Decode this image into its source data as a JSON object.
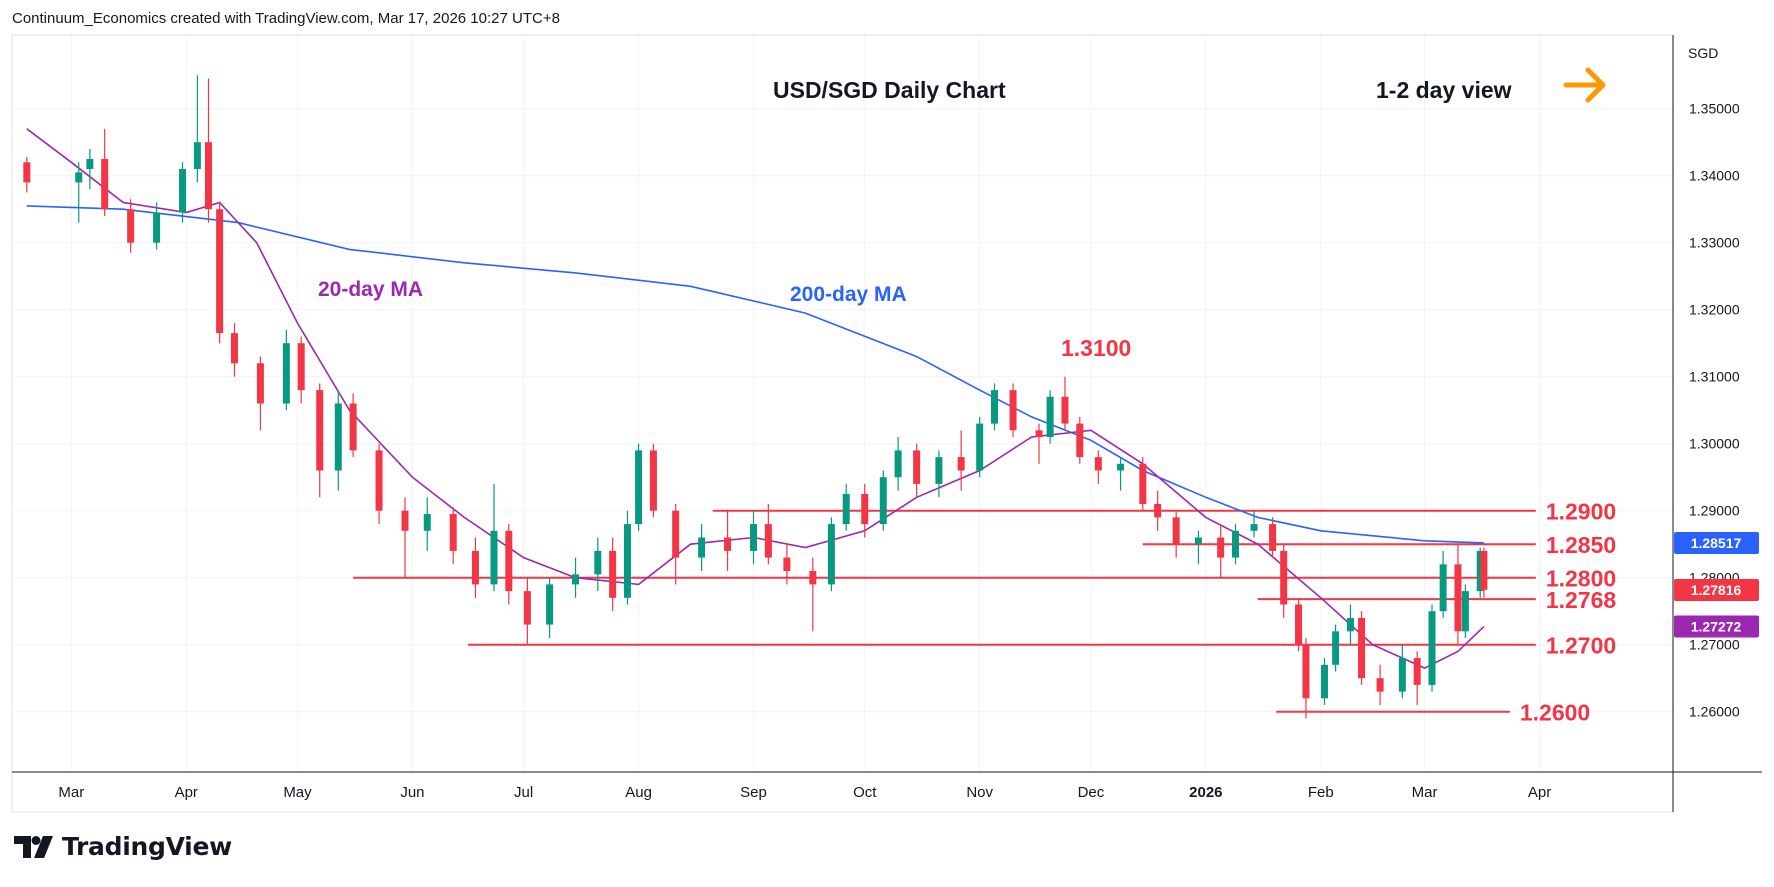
{
  "header": {
    "attribution": "Continuum_Economics created with TradingView.com, Mar 17, 2026 10:27 UTC+8"
  },
  "footer": {
    "brand": "TradingView"
  },
  "colors": {
    "up": "#089981",
    "down": "#f23645",
    "ma20": "#9c27b0",
    "ma200": "#2962ff",
    "level": "#f23645",
    "arrow": "#ff9800",
    "grid": "#f0f3fa",
    "axis": "#131722"
  },
  "chart_data": {
    "type": "candlestick",
    "title": "USD/SGD Daily Chart",
    "view_label": "1-2 day view",
    "view_icon": "right-arrow-icon",
    "currency": "SGD",
    "x_tick_labels": [
      "Mar",
      "Apr",
      "May",
      "Jun",
      "Jul",
      "Aug",
      "Sep",
      "Oct",
      "Nov",
      "Dec",
      "2026",
      "Feb",
      "Mar",
      "Apr"
    ],
    "y_tick_labels": [
      "1.35000",
      "1.34000",
      "1.33000",
      "1.32000",
      "1.31000",
      "1.30000",
      "1.29000",
      "1.28000",
      "1.27000",
      "1.26000"
    ],
    "ylim": [
      1.251,
      1.361
    ],
    "grid": true,
    "annotations": [
      {
        "text": "20-day MA",
        "role": "ma20-label"
      },
      {
        "text": "200-day MA",
        "role": "ma200-label"
      },
      {
        "text": "1.3100",
        "role": "peak-label"
      }
    ],
    "levels": [
      {
        "label": "1.2900",
        "value": 1.29,
        "from": "2025-08-21",
        "to": "2026-03-31"
      },
      {
        "label": "1.2850",
        "value": 1.285,
        "from": "2025-12-15",
        "to": "2026-03-31"
      },
      {
        "label": "1.2800",
        "value": 1.28,
        "from": "2025-05-16",
        "to": "2026-03-31"
      },
      {
        "label": "1.2768",
        "value": 1.2768,
        "from": "2026-01-15",
        "to": "2026-03-31"
      },
      {
        "label": "1.2700",
        "value": 1.27,
        "from": "2025-06-16",
        "to": "2026-03-31"
      },
      {
        "label": "1.2600",
        "value": 1.26,
        "from": "2026-01-20",
        "to": "2026-03-24"
      }
    ],
    "price_badges": [
      {
        "label": "1.28517",
        "value": 1.28517,
        "series": "200-day MA",
        "color": "#2962ff"
      },
      {
        "label": "1.27816",
        "value": 1.27816,
        "series": "last price",
        "color": "#f23645"
      },
      {
        "label": "1.27272",
        "value": 1.27272,
        "series": "20-day MA",
        "color": "#9c27b0"
      }
    ],
    "ohlc": [
      [
        "2025-02-17",
        1.342,
        1.3428,
        1.3375,
        1.339
      ],
      [
        "2025-03-03",
        1.339,
        1.342,
        1.333,
        1.3405
      ],
      [
        "2025-03-06",
        1.341,
        1.344,
        1.338,
        1.3425
      ],
      [
        "2025-03-10",
        1.3425,
        1.347,
        1.334,
        1.335
      ],
      [
        "2025-03-17",
        1.335,
        1.3365,
        1.3285,
        1.33
      ],
      [
        "2025-03-24",
        1.33,
        1.336,
        1.329,
        1.3345
      ],
      [
        "2025-03-31",
        1.3345,
        1.342,
        1.333,
        1.341
      ],
      [
        "2025-04-04",
        1.341,
        1.355,
        1.339,
        1.345
      ],
      [
        "2025-04-07",
        1.345,
        1.3545,
        1.333,
        1.335
      ],
      [
        "2025-04-10",
        1.335,
        1.336,
        1.315,
        1.3165
      ],
      [
        "2025-04-14",
        1.3165,
        1.318,
        1.31,
        1.312
      ],
      [
        "2025-04-21",
        1.312,
        1.313,
        1.302,
        1.306
      ],
      [
        "2025-04-28",
        1.306,
        1.317,
        1.305,
        1.315
      ],
      [
        "2025-05-02",
        1.315,
        1.316,
        1.306,
        1.308
      ],
      [
        "2025-05-07",
        1.308,
        1.309,
        1.292,
        1.296
      ],
      [
        "2025-05-12",
        1.296,
        1.308,
        1.293,
        1.306
      ],
      [
        "2025-05-16",
        1.306,
        1.3075,
        1.298,
        1.299
      ],
      [
        "2025-05-23",
        1.299,
        1.3,
        1.288,
        1.29
      ],
      [
        "2025-05-30",
        1.29,
        1.292,
        1.28,
        1.287
      ],
      [
        "2025-06-05",
        1.287,
        1.292,
        1.284,
        1.2895
      ],
      [
        "2025-06-12",
        1.2895,
        1.2905,
        1.282,
        1.284
      ],
      [
        "2025-06-18",
        1.284,
        1.286,
        1.277,
        1.279
      ],
      [
        "2025-06-23",
        1.279,
        1.294,
        1.278,
        1.287
      ],
      [
        "2025-06-27",
        1.287,
        1.288,
        1.276,
        1.278
      ],
      [
        "2025-07-02",
        1.278,
        1.28,
        1.27,
        1.273
      ],
      [
        "2025-07-08",
        1.273,
        1.28,
        1.271,
        1.279
      ],
      [
        "2025-07-15",
        1.279,
        1.283,
        1.277,
        1.2805
      ],
      [
        "2025-07-21",
        1.2805,
        1.286,
        1.278,
        1.284
      ],
      [
        "2025-07-25",
        1.284,
        1.286,
        1.275,
        1.277
      ],
      [
        "2025-07-29",
        1.277,
        1.29,
        1.276,
        1.288
      ],
      [
        "2025-08-01",
        1.288,
        1.3,
        1.287,
        1.299
      ],
      [
        "2025-08-05",
        1.299,
        1.3,
        1.289,
        1.29
      ],
      [
        "2025-08-11",
        1.29,
        1.291,
        1.279,
        1.283
      ],
      [
        "2025-08-18",
        1.283,
        1.288,
        1.281,
        1.286
      ],
      [
        "2025-08-25",
        1.286,
        1.29,
        1.281,
        1.284
      ],
      [
        "2025-09-01",
        1.284,
        1.29,
        1.282,
        1.288
      ],
      [
        "2025-09-05",
        1.288,
        1.291,
        1.282,
        1.283
      ],
      [
        "2025-09-10",
        1.283,
        1.285,
        1.279,
        1.281
      ],
      [
        "2025-09-17",
        1.281,
        1.283,
        1.272,
        1.279
      ],
      [
        "2025-09-22",
        1.279,
        1.289,
        1.278,
        1.288
      ],
      [
        "2025-09-26",
        1.288,
        1.294,
        1.287,
        1.2925
      ],
      [
        "2025-10-01",
        1.2925,
        1.294,
        1.286,
        1.288
      ],
      [
        "2025-10-06",
        1.288,
        1.296,
        1.287,
        1.295
      ],
      [
        "2025-10-10",
        1.295,
        1.301,
        1.293,
        1.299
      ],
      [
        "2025-10-15",
        1.299,
        1.3,
        1.292,
        1.294
      ],
      [
        "2025-10-21",
        1.294,
        1.299,
        1.292,
        1.298
      ],
      [
        "2025-10-27",
        1.298,
        1.302,
        1.293,
        1.296
      ],
      [
        "2025-11-01",
        1.296,
        1.304,
        1.295,
        1.303
      ],
      [
        "2025-11-05",
        1.303,
        1.309,
        1.302,
        1.308
      ],
      [
        "2025-11-10",
        1.308,
        1.309,
        1.301,
        1.302
      ],
      [
        "2025-11-17",
        1.302,
        1.303,
        1.297,
        1.301
      ],
      [
        "2025-11-20",
        1.301,
        1.308,
        1.3,
        1.307
      ],
      [
        "2025-11-24",
        1.307,
        1.31,
        1.302,
        1.303
      ],
      [
        "2025-11-28",
        1.303,
        1.304,
        1.297,
        1.298
      ],
      [
        "2025-12-03",
        1.298,
        1.299,
        1.294,
        1.296
      ],
      [
        "2025-12-09",
        1.296,
        1.298,
        1.293,
        1.297
      ],
      [
        "2025-12-15",
        1.297,
        1.298,
        1.29,
        1.291
      ],
      [
        "2025-12-19",
        1.291,
        1.293,
        1.287,
        1.289
      ],
      [
        "2025-12-24",
        1.289,
        1.29,
        1.283,
        1.285
      ],
      [
        "2025-12-30",
        1.285,
        1.287,
        1.282,
        1.286
      ],
      [
        "2026-01-05",
        1.286,
        1.288,
        1.28,
        1.283
      ],
      [
        "2026-01-09",
        1.283,
        1.288,
        1.282,
        1.287
      ],
      [
        "2026-01-14",
        1.287,
        1.29,
        1.286,
        1.288
      ],
      [
        "2026-01-19",
        1.288,
        1.289,
        1.283,
        1.284
      ],
      [
        "2026-01-22",
        1.284,
        1.285,
        1.274,
        1.276
      ],
      [
        "2026-01-26",
        1.276,
        1.277,
        1.269,
        1.27
      ],
      [
        "2026-01-28",
        1.27,
        1.271,
        1.259,
        1.262
      ],
      [
        "2026-02-02",
        1.262,
        1.268,
        1.261,
        1.267
      ],
      [
        "2026-02-05",
        1.267,
        1.273,
        1.266,
        1.272
      ],
      [
        "2026-02-09",
        1.272,
        1.276,
        1.27,
        1.274
      ],
      [
        "2026-02-12",
        1.274,
        1.275,
        1.264,
        1.265
      ],
      [
        "2026-02-17",
        1.265,
        1.267,
        1.261,
        1.263
      ],
      [
        "2026-02-23",
        1.263,
        1.27,
        1.262,
        1.268
      ],
      [
        "2026-02-27",
        1.268,
        1.269,
        1.261,
        1.264
      ],
      [
        "2026-03-03",
        1.264,
        1.276,
        1.263,
        1.275
      ],
      [
        "2026-03-06",
        1.275,
        1.284,
        1.274,
        1.282
      ],
      [
        "2026-03-10",
        1.282,
        1.285,
        1.27,
        1.272
      ],
      [
        "2026-03-12",
        1.272,
        1.279,
        1.271,
        1.278
      ],
      [
        "2026-03-16",
        1.278,
        1.2845,
        1.277,
        1.284
      ],
      [
        "2026-03-17",
        1.284,
        1.2845,
        1.277,
        1.2782
      ]
    ],
    "ma20": [
      [
        "2025-02-17",
        1.347
      ],
      [
        "2025-03-01",
        1.342
      ],
      [
        "2025-03-15",
        1.336
      ],
      [
        "2025-04-01",
        1.3345
      ],
      [
        "2025-04-10",
        1.336
      ],
      [
        "2025-04-20",
        1.33
      ],
      [
        "2025-05-01",
        1.318
      ],
      [
        "2025-05-15",
        1.305
      ],
      [
        "2025-06-01",
        1.295
      ],
      [
        "2025-06-15",
        1.289
      ],
      [
        "2025-07-01",
        1.283
      ],
      [
        "2025-07-15",
        1.28
      ],
      [
        "2025-08-01",
        1.279
      ],
      [
        "2025-08-15",
        1.285
      ],
      [
        "2025-09-01",
        1.286
      ],
      [
        "2025-09-15",
        1.2845
      ],
      [
        "2025-10-01",
        1.287
      ],
      [
        "2025-10-15",
        1.292
      ],
      [
        "2025-11-01",
        1.296
      ],
      [
        "2025-11-15",
        1.301
      ],
      [
        "2025-12-01",
        1.302
      ],
      [
        "2025-12-15",
        1.297
      ],
      [
        "2026-01-01",
        1.289
      ],
      [
        "2026-01-15",
        1.285
      ],
      [
        "2026-02-01",
        1.277
      ],
      [
        "2026-02-15",
        1.27
      ],
      [
        "2026-03-01",
        1.2665
      ],
      [
        "2026-03-10",
        1.269
      ],
      [
        "2026-03-17",
        1.2727
      ]
    ],
    "ma200": [
      [
        "2025-02-17",
        1.3355
      ],
      [
        "2025-03-15",
        1.335
      ],
      [
        "2025-04-15",
        1.333
      ],
      [
        "2025-05-15",
        1.329
      ],
      [
        "2025-06-15",
        1.327
      ],
      [
        "2025-07-15",
        1.3255
      ],
      [
        "2025-08-15",
        1.3235
      ],
      [
        "2025-09-15",
        1.3195
      ],
      [
        "2025-10-15",
        1.313
      ],
      [
        "2025-11-01",
        1.308
      ],
      [
        "2025-11-15",
        1.304
      ],
      [
        "2025-12-01",
        1.3005
      ],
      [
        "2025-12-15",
        1.296
      ],
      [
        "2026-01-01",
        1.292
      ],
      [
        "2026-01-15",
        1.289
      ],
      [
        "2026-02-01",
        1.287
      ],
      [
        "2026-03-01",
        1.2855
      ],
      [
        "2026-03-17",
        1.2852
      ]
    ]
  }
}
